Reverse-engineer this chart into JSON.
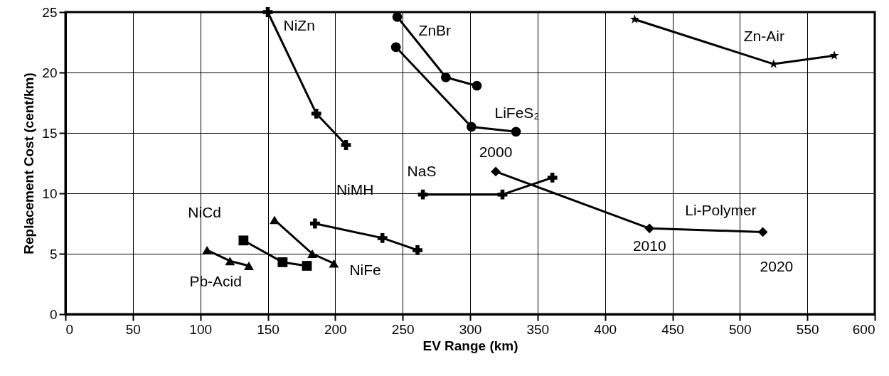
{
  "chart_data": {
    "type": "line",
    "xlabel": "EV Range (km)",
    "ylabel": "Replacement Cost (cent/km)",
    "xlim": [
      0,
      600
    ],
    "xticks": [
      0,
      50,
      100,
      150,
      200,
      250,
      300,
      350,
      400,
      450,
      500,
      550,
      600
    ],
    "ylim": [
      0,
      25
    ],
    "yticks": [
      0,
      5,
      10,
      15,
      20,
      25
    ],
    "grid": true,
    "line_style": "solid",
    "series": [
      {
        "name": "NiZn",
        "color": "#000000",
        "marker": "cross",
        "x": [
          150,
          186,
          208
        ],
        "values": [
          25,
          16.6,
          14.0
        ]
      },
      {
        "name": "ZnBr",
        "color": "#000000",
        "marker": "circle",
        "x": [
          246,
          282,
          305
        ],
        "values": [
          24.6,
          19.6,
          18.9
        ]
      },
      {
        "name": "LiFeS₂",
        "color": "#000000",
        "marker": "circle",
        "x": [
          245,
          301,
          334
        ],
        "values": [
          22.1,
          15.5,
          15.1
        ]
      },
      {
        "name": "Zn-Air",
        "color": "#000000",
        "marker": "star",
        "x": [
          422,
          525,
          570
        ],
        "values": [
          24.4,
          20.7,
          21.4
        ]
      },
      {
        "name": "NaS",
        "color": "#000000",
        "marker": "cross",
        "x": [
          265,
          324,
          361
        ],
        "values": [
          9.9,
          9.9,
          11.3
        ]
      },
      {
        "name": "Li-Polymer",
        "color": "#000000",
        "marker": "diamond",
        "x": [
          319,
          433,
          517
        ],
        "values": [
          11.8,
          7.1,
          6.8
        ]
      },
      {
        "name": "NiMH",
        "color": "#000000",
        "marker": "cross",
        "x": [
          185,
          235,
          261
        ],
        "values": [
          7.5,
          6.3,
          5.3
        ]
      },
      {
        "name": "NiFe",
        "color": "#000000",
        "marker": "triangle",
        "x": [
          155,
          183,
          199
        ],
        "values": [
          7.8,
          5.0,
          4.2
        ]
      },
      {
        "name": "NiCd",
        "color": "#000000",
        "marker": "square",
        "x": [
          132,
          161,
          179
        ],
        "values": [
          6.1,
          4.3,
          4.0
        ]
      },
      {
        "name": "Pb-Acid",
        "color": "#000000",
        "marker": "triangle",
        "x": [
          105,
          122,
          136
        ],
        "values": [
          5.3,
          4.4,
          4.0
        ]
      }
    ],
    "annotations": [
      {
        "text": "2000",
        "x": 319,
        "y": 11.8
      },
      {
        "text": "2010",
        "x": 433,
        "y": 7.1
      },
      {
        "text": "2020",
        "x": 517,
        "y": 6.8
      }
    ]
  }
}
